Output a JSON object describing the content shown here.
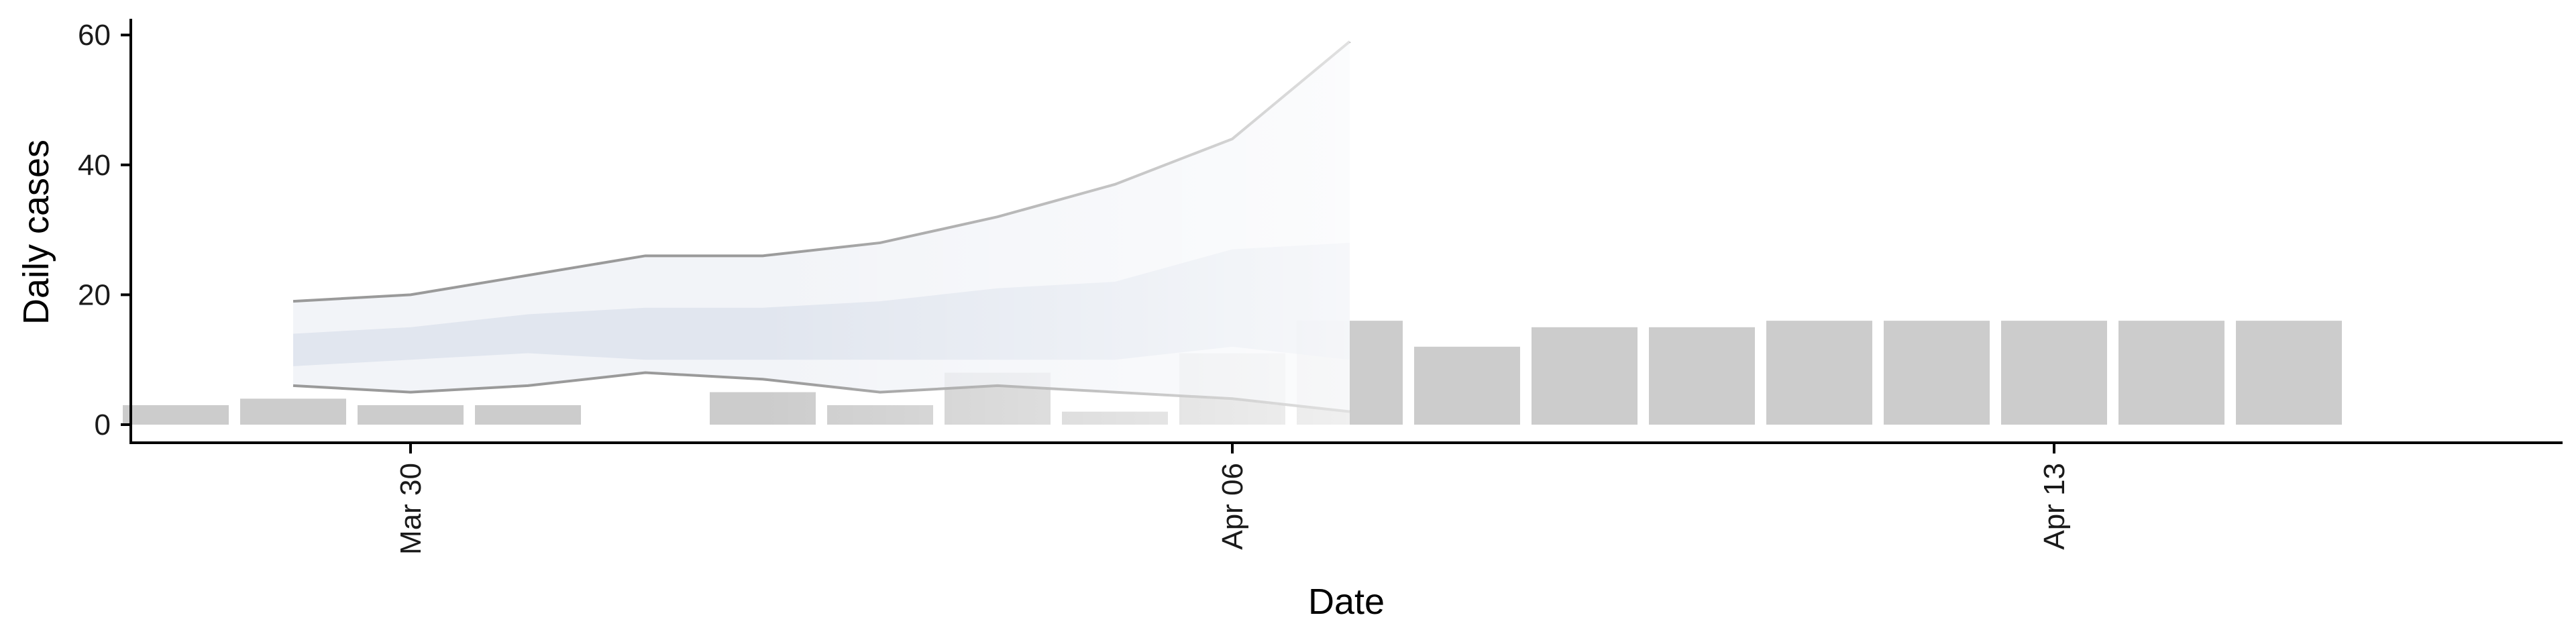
{
  "chart_data": {
    "type": "bar",
    "xlabel": "Date",
    "ylabel": "Daily cases",
    "ylim": [
      0,
      60
    ],
    "y_ticks": [
      0,
      20,
      40,
      60
    ],
    "x_ticks": [
      {
        "label": "Mar 30",
        "date": "2020-03-30"
      },
      {
        "label": "Apr 06",
        "date": "2020-04-06"
      },
      {
        "label": "Apr 13",
        "date": "2020-04-13"
      }
    ],
    "grid": false,
    "bars": [
      {
        "date": "2020-03-28",
        "value": 3
      },
      {
        "date": "2020-03-29",
        "value": 4
      },
      {
        "date": "2020-03-30",
        "value": 3
      },
      {
        "date": "2020-03-31",
        "value": 3
      },
      {
        "date": "2020-04-01",
        "value": 0
      },
      {
        "date": "2020-04-02",
        "value": 5
      },
      {
        "date": "2020-04-03",
        "value": 3
      },
      {
        "date": "2020-04-04",
        "value": 8
      },
      {
        "date": "2020-04-05",
        "value": 2
      },
      {
        "date": "2020-04-06",
        "value": 11
      },
      {
        "date": "2020-04-07",
        "value": 16
      },
      {
        "date": "2020-04-08",
        "value": 12
      },
      {
        "date": "2020-04-09",
        "value": 15
      },
      {
        "date": "2020-04-10",
        "value": 15
      },
      {
        "date": "2020-04-11",
        "value": 16
      },
      {
        "date": "2020-04-12",
        "value": 16
      },
      {
        "date": "2020-04-13",
        "value": 16
      },
      {
        "date": "2020-04-14",
        "value": 16
      },
      {
        "date": "2020-04-15",
        "value": 16
      }
    ],
    "ribbon": {
      "dates": [
        "2020-03-29",
        "2020-03-30",
        "2020-03-31",
        "2020-04-01",
        "2020-04-02",
        "2020-04-03",
        "2020-04-04",
        "2020-04-05",
        "2020-04-06",
        "2020-04-07"
      ],
      "outer_upper": [
        19,
        20,
        23,
        26,
        26,
        28,
        32,
        37,
        44,
        59
      ],
      "outer_lower": [
        6,
        5,
        6,
        8,
        7,
        5,
        6,
        5,
        4,
        2
      ],
      "inner_upper": [
        14,
        15,
        17,
        18,
        18,
        19,
        21,
        22,
        27,
        28
      ],
      "inner_lower": [
        9,
        10,
        11,
        10,
        10,
        10,
        10,
        10,
        12,
        10
      ]
    },
    "colors": {
      "bar": "#cccccc",
      "outer_band": "#eef0f5",
      "inner_band": "#d5dcea",
      "outer_line": "#9a9a9a"
    }
  }
}
